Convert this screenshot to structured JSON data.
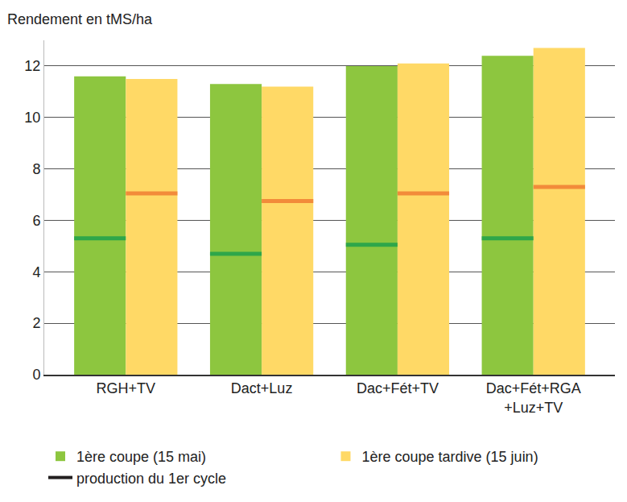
{
  "chart_data": {
    "type": "bar",
    "y_label": "Rendement en tMS/ha",
    "categories": [
      "RGH+TV",
      "Dact+Luz",
      "Dac+Fét+TV",
      "Dac+Fét+RGA\n+Luz+TV"
    ],
    "series": [
      {
        "name": "1ère coupe (15 mai)",
        "color": "#8dc63f",
        "values": [
          11.6,
          11.3,
          12.0,
          12.4
        ],
        "first_cycle": {
          "color": "#2ea64a",
          "values": [
            5.3,
            4.7,
            5.05,
            5.3
          ]
        }
      },
      {
        "name": "1ère coupe tardive (15 juin)",
        "color": "#ffd966",
        "values": [
          11.5,
          11.2,
          12.1,
          12.7
        ],
        "first_cycle": {
          "color": "#f28b3a",
          "values": [
            7.05,
            6.75,
            7.05,
            7.3
          ]
        }
      }
    ],
    "first_cycle_legend": {
      "name": "production du 1er cycle",
      "color": "#231f20",
      "line_style": "solid"
    },
    "ylim": [
      0,
      13
    ],
    "yticks": [
      0,
      2,
      4,
      6,
      8,
      10,
      12
    ],
    "grid": true,
    "legend": "bottom"
  }
}
